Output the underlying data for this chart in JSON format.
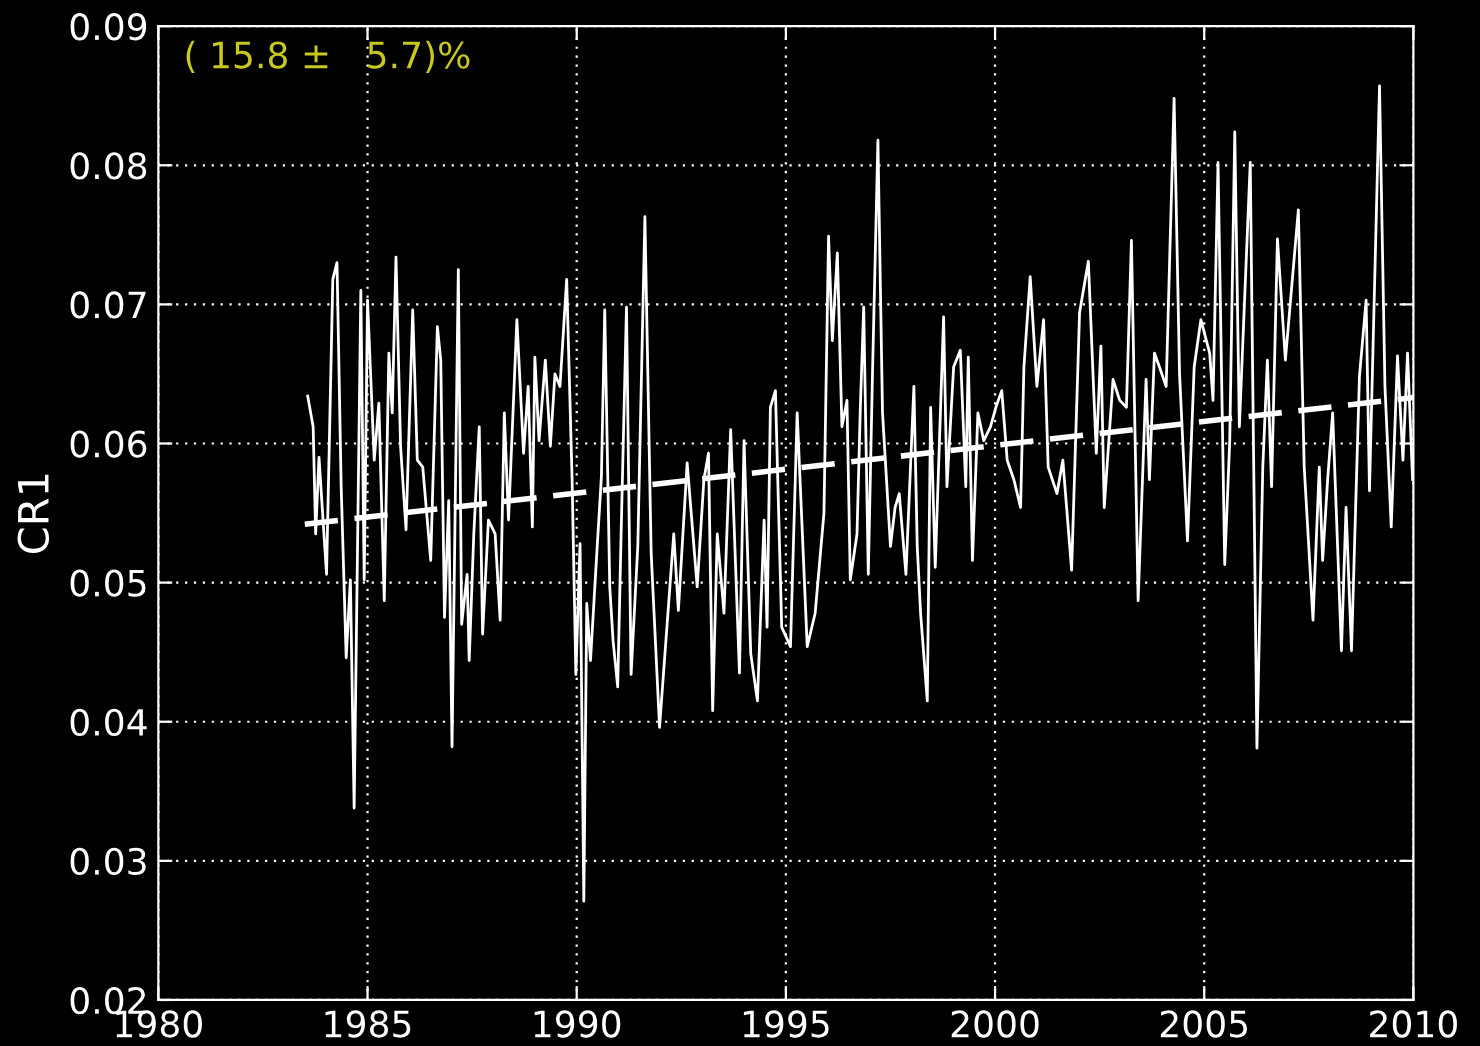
{
  "chart_data": {
    "type": "line",
    "ylabel": "CR1",
    "annotations": [
      "( 15.8 ±   5.7)%"
    ],
    "xlim": [
      1980,
      2010
    ],
    "xticks": [
      1980,
      1985,
      1990,
      1995,
      2000,
      2005,
      2010
    ],
    "ylim": [
      0.02,
      0.09
    ],
    "yticks": [
      0.02,
      0.03,
      0.04,
      0.05,
      0.06,
      0.07,
      0.08,
      0.09
    ],
    "grid": true,
    "legend": false,
    "series": [
      {
        "color": "#ffffff",
        "line_style": "solid",
        "x": [
          1983.57,
          1983.7,
          1983.76,
          1983.84,
          1984.02,
          1984.17,
          1984.27,
          1984.37,
          1984.49,
          1984.59,
          1984.68,
          1984.84,
          1984.92,
          1985.0,
          1985.16,
          1985.27,
          1985.4,
          1985.51,
          1985.59,
          1985.68,
          1985.79,
          1985.92,
          1986.08,
          1986.19,
          1986.32,
          1986.51,
          1986.67,
          1986.75,
          1986.84,
          1986.94,
          1987.02,
          1987.17,
          1987.25,
          1987.38,
          1987.43,
          1987.54,
          1987.67,
          1987.75,
          1987.89,
          1988.05,
          1988.17,
          1988.27,
          1988.37,
          1988.57,
          1988.73,
          1988.84,
          1988.94,
          1989.0,
          1989.1,
          1989.25,
          1989.37,
          1989.48,
          1989.6,
          1989.76,
          1989.89,
          1989.98,
          1990.08,
          1990.17,
          1990.24,
          1990.33,
          1990.48,
          1990.59,
          1990.67,
          1990.79,
          1990.87,
          1990.98,
          1991.06,
          1991.19,
          1991.3,
          1991.46,
          1991.63,
          1991.78,
          1991.98,
          1992.32,
          1992.43,
          1992.64,
          1992.88,
          1993.04,
          1993.15,
          1993.25,
          1993.36,
          1993.52,
          1993.68,
          1993.89,
          1994.0,
          1994.16,
          1994.32,
          1994.48,
          1994.55,
          1994.63,
          1994.75,
          1994.9,
          1995.11,
          1995.27,
          1995.51,
          1995.7,
          1995.91,
          1996.02,
          1996.11,
          1996.23,
          1996.34,
          1996.46,
          1996.54,
          1996.7,
          1996.78,
          1996.86,
          1996.97,
          1997.07,
          1997.2,
          1997.31,
          1997.5,
          1997.61,
          1997.71,
          1997.87,
          1998.06,
          1998.14,
          1998.22,
          1998.38,
          1998.46,
          1998.57,
          1998.77,
          1998.85,
          1999.01,
          1999.17,
          1999.3,
          1999.36,
          1999.46,
          1999.59,
          1999.73,
          1999.89,
          2000.02,
          2000.16,
          2000.29,
          2000.45,
          2000.61,
          2000.69,
          2000.84,
          2001.0,
          2001.16,
          2001.27,
          2001.48,
          2001.62,
          2001.83,
          2002.02,
          2002.23,
          2002.42,
          2002.53,
          2002.61,
          2002.82,
          2002.98,
          2003.14,
          2003.26,
          2003.42,
          2003.61,
          2003.69,
          2003.81,
          2003.93,
          2004.09,
          2004.28,
          2004.41,
          2004.6,
          2004.76,
          2004.92,
          2005.13,
          2005.21,
          2005.33,
          2005.49,
          2005.61,
          2005.73,
          2005.84,
          2006.1,
          2006.26,
          2006.4,
          2006.51,
          2006.61,
          2006.75,
          2006.94,
          2007.25,
          2007.39,
          2007.6,
          2007.75,
          2007.83,
          2007.95,
          2008.07,
          2008.28,
          2008.39,
          2008.52,
          2008.71,
          2008.87,
          2008.95,
          2009.19,
          2009.32,
          2009.47,
          2009.62,
          2009.75,
          2009.86,
          2009.98
        ],
        "values": [
          0.0634,
          0.0612,
          0.0535,
          0.059,
          0.0506,
          0.0718,
          0.073,
          0.0569,
          0.0446,
          0.0502,
          0.0338,
          0.071,
          0.0502,
          0.0703,
          0.0588,
          0.0629,
          0.0487,
          0.0665,
          0.0622,
          0.0734,
          0.0598,
          0.0538,
          0.0696,
          0.0588,
          0.0583,
          0.0516,
          0.0684,
          0.066,
          0.0475,
          0.0559,
          0.0382,
          0.0725,
          0.047,
          0.0506,
          0.0444,
          0.0535,
          0.0612,
          0.0463,
          0.0545,
          0.0535,
          0.0473,
          0.0622,
          0.0545,
          0.0689,
          0.0593,
          0.0641,
          0.054,
          0.0662,
          0.0602,
          0.066,
          0.0598,
          0.065,
          0.0641,
          0.0718,
          0.0574,
          0.0434,
          0.0528,
          0.0271,
          0.0485,
          0.0444,
          0.0521,
          0.0576,
          0.0696,
          0.0497,
          0.0458,
          0.0425,
          0.0533,
          0.0698,
          0.0434,
          0.0526,
          0.0763,
          0.0521,
          0.0396,
          0.0535,
          0.048,
          0.0586,
          0.0497,
          0.0574,
          0.0593,
          0.0408,
          0.0535,
          0.0478,
          0.061,
          0.0435,
          0.0602,
          0.0449,
          0.0415,
          0.0545,
          0.0468,
          0.0626,
          0.0638,
          0.0468,
          0.0454,
          0.0622,
          0.0454,
          0.0478,
          0.055,
          0.0749,
          0.0674,
          0.0737,
          0.0612,
          0.0631,
          0.0502,
          0.0535,
          0.0626,
          0.0698,
          0.0506,
          0.065,
          0.0818,
          0.0622,
          0.0526,
          0.0554,
          0.0564,
          0.0506,
          0.0641,
          0.0526,
          0.0478,
          0.0415,
          0.0626,
          0.0511,
          0.0691,
          0.0569,
          0.0655,
          0.0667,
          0.0569,
          0.0662,
          0.0516,
          0.0622,
          0.0602,
          0.0612,
          0.0626,
          0.0638,
          0.0588,
          0.0574,
          0.0554,
          0.0655,
          0.072,
          0.0641,
          0.0689,
          0.0583,
          0.0564,
          0.0588,
          0.0509,
          0.0694,
          0.0731,
          0.0593,
          0.067,
          0.0554,
          0.0646,
          0.0631,
          0.0626,
          0.0746,
          0.0487,
          0.0646,
          0.0574,
          0.0665,
          0.0655,
          0.0641,
          0.0848,
          0.065,
          0.053,
          0.0655,
          0.0689,
          0.0665,
          0.0631,
          0.0802,
          0.0513,
          0.0602,
          0.0824,
          0.0612,
          0.0802,
          0.0381,
          0.0583,
          0.066,
          0.0569,
          0.0747,
          0.066,
          0.0768,
          0.0583,
          0.0473,
          0.0583,
          0.0516,
          0.0574,
          0.0622,
          0.0451,
          0.0554,
          0.0451,
          0.0648,
          0.0703,
          0.0566,
          0.0857,
          0.0641,
          0.054,
          0.0663,
          0.0588,
          0.0665,
          0.0574
        ]
      },
      {
        "color": "#ffffff",
        "line_style": "dashed",
        "x": [
          1983.5,
          2010
        ],
        "values": [
          0.0542,
          0.0633
        ]
      }
    ]
  }
}
